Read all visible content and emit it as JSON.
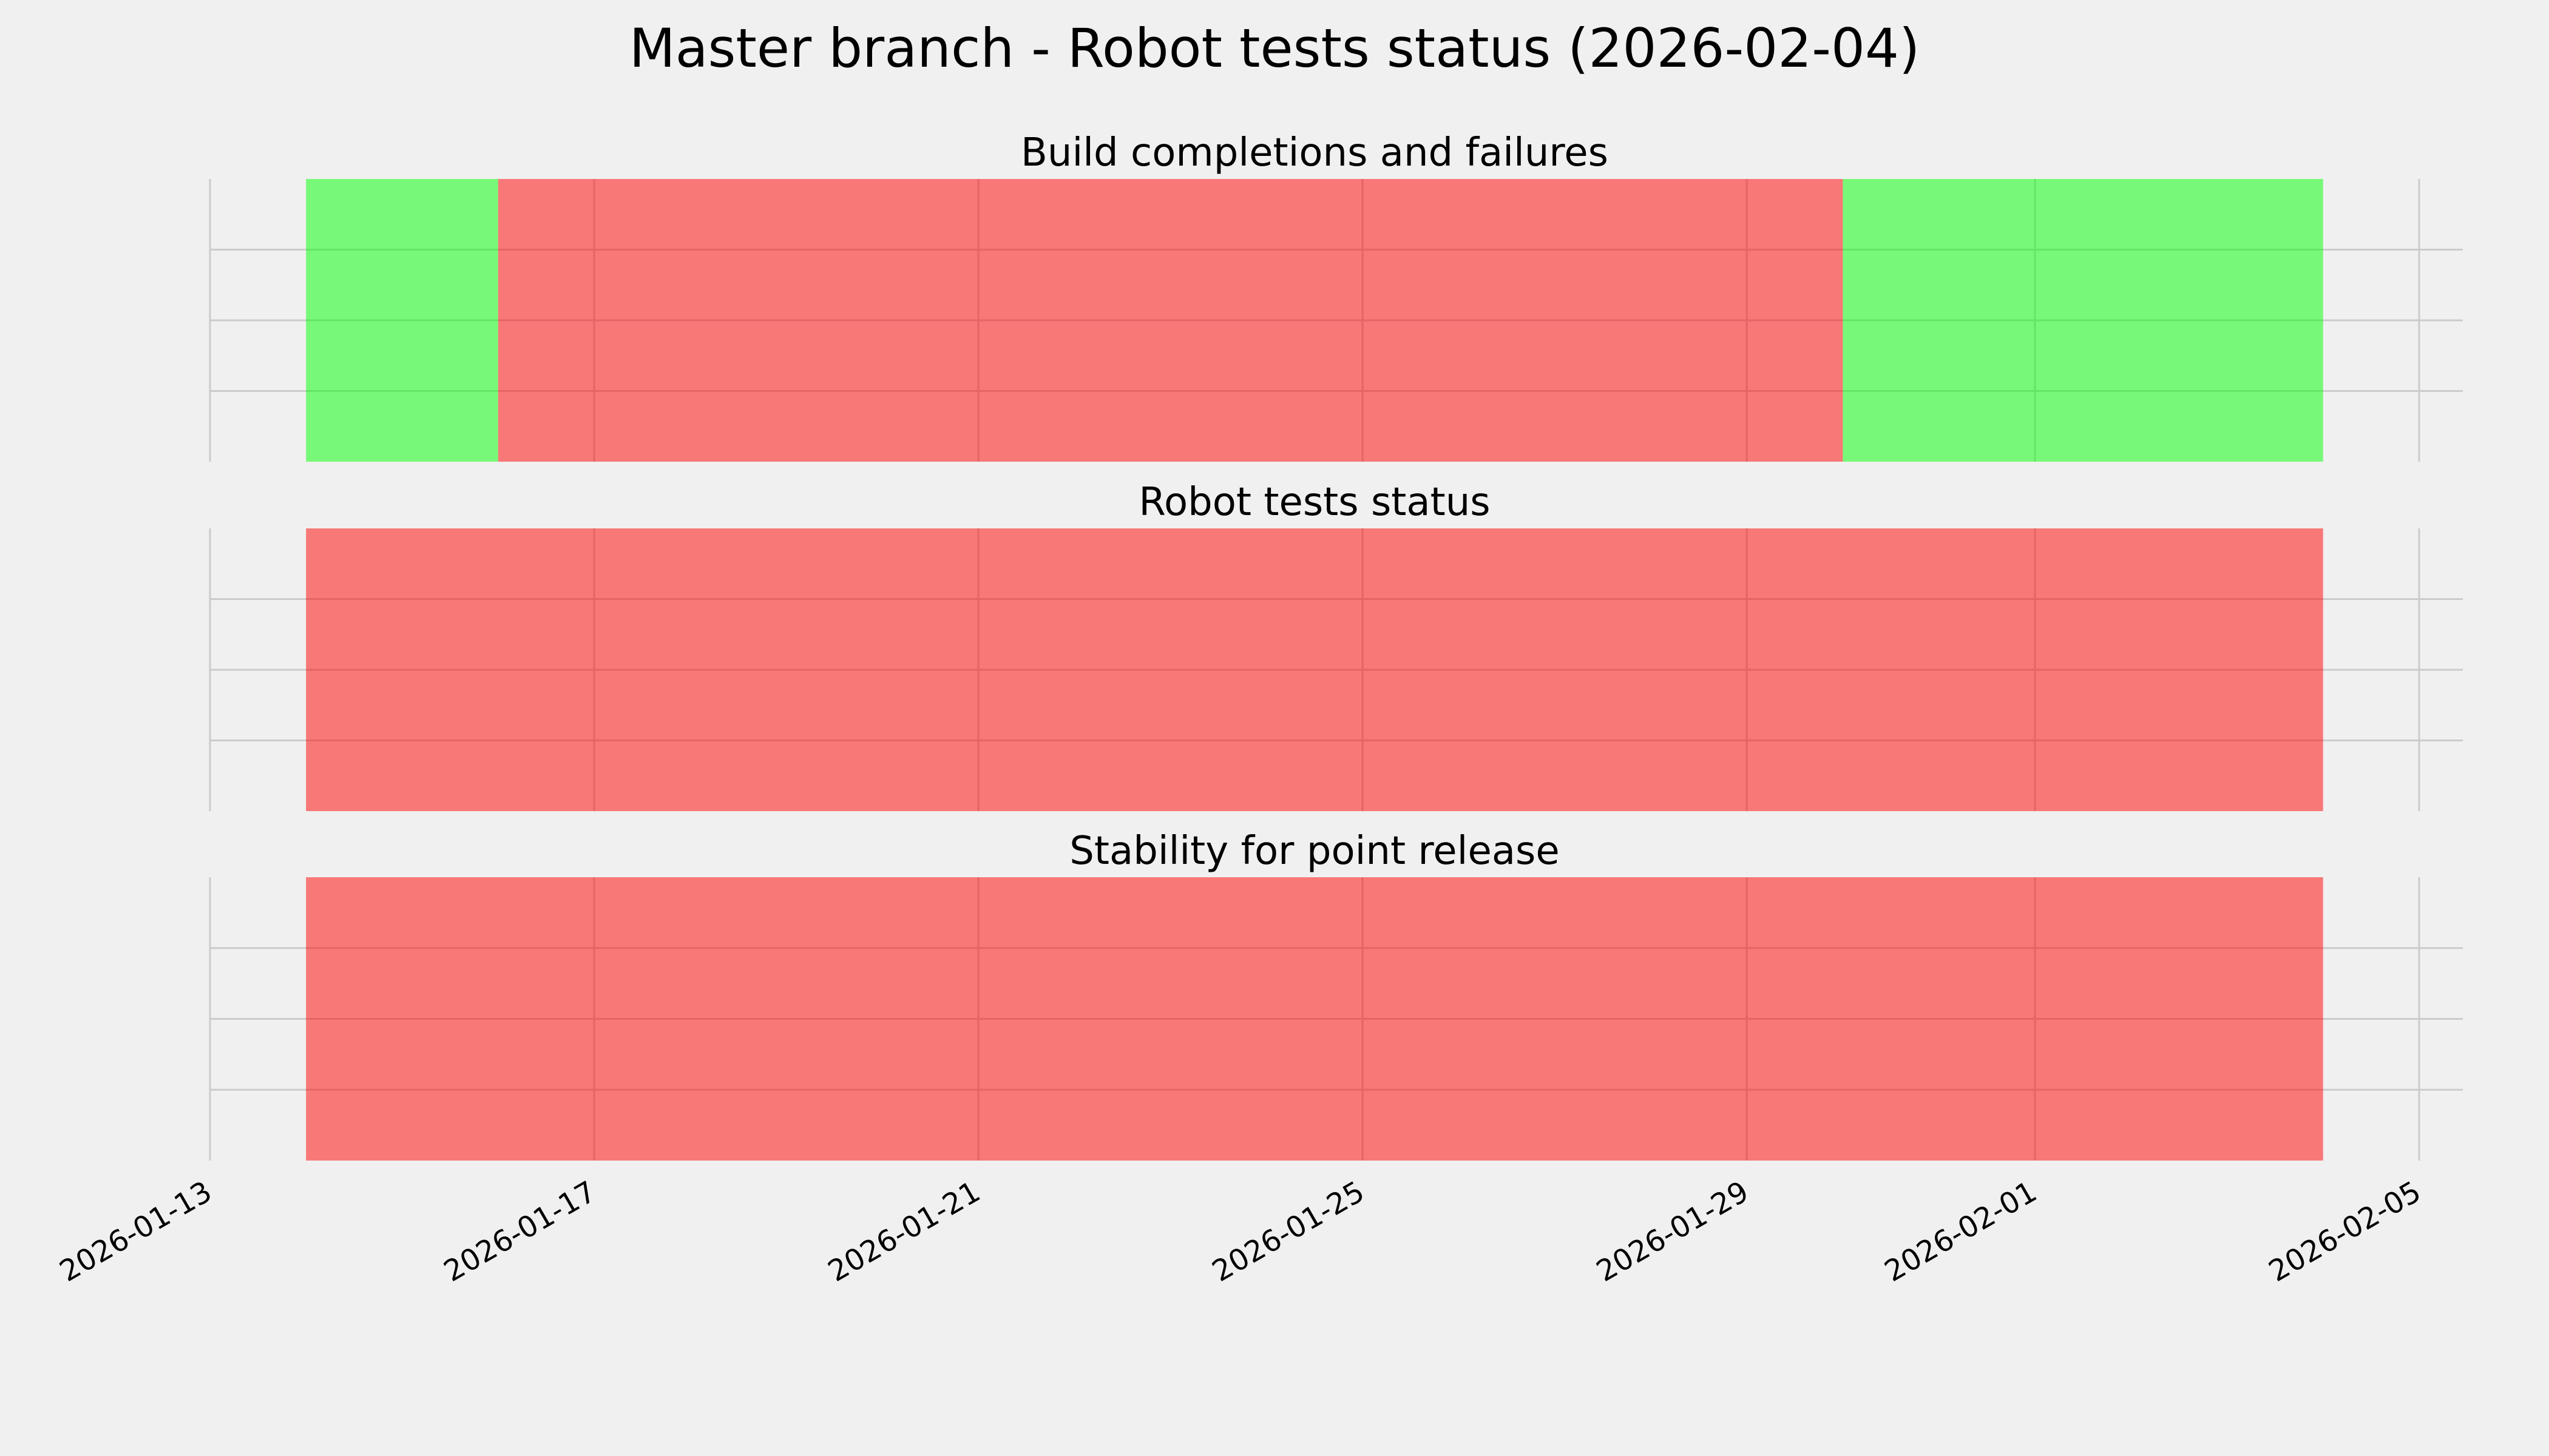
{
  "title": "Master branch - Robot tests status (2026-02-04)",
  "chart_data": [
    {
      "type": "timeline",
      "title": "Build completions and failures",
      "spans": [
        {
          "start": "2026-01-14",
          "end": "2026-01-16",
          "color": "#00ff00"
        },
        {
          "start": "2026-01-16",
          "end": "2026-01-30",
          "color": "#ff0000"
        },
        {
          "start": "2026-01-30",
          "end": "2026-02-04",
          "color": "#00ff00"
        }
      ],
      "alpha": 0.5,
      "xlim": [
        "2026-01-13",
        "2026-02-05"
      ],
      "xticks": [
        "2026-01-13",
        "2026-01-17",
        "2026-01-21",
        "2026-01-25",
        "2026-01-29",
        "2026-02-01",
        "2026-02-05"
      ],
      "ylim": [
        0,
        1
      ],
      "yticks": [
        0.25,
        0.5,
        0.75
      ],
      "grid": true
    },
    {
      "type": "timeline",
      "title": "Robot tests status",
      "spans": [
        {
          "start": "2026-01-14",
          "end": "2026-02-04",
          "color": "#ff0000"
        }
      ],
      "alpha": 0.5,
      "xlim": [
        "2026-01-13",
        "2026-02-05"
      ],
      "xticks": [
        "2026-01-13",
        "2026-01-17",
        "2026-01-21",
        "2026-01-25",
        "2026-01-29",
        "2026-02-01",
        "2026-02-05"
      ],
      "ylim": [
        0,
        1
      ],
      "yticks": [
        0.25,
        0.5,
        0.75
      ],
      "grid": true
    },
    {
      "type": "timeline",
      "title": "Stability for point release",
      "spans": [
        {
          "start": "2026-01-14",
          "end": "2026-02-04",
          "color": "#ff0000"
        }
      ],
      "alpha": 0.5,
      "xlim": [
        "2026-01-13",
        "2026-02-05"
      ],
      "xticks": [
        "2026-01-13",
        "2026-01-17",
        "2026-01-21",
        "2026-01-25",
        "2026-01-29",
        "2026-02-01",
        "2026-02-05"
      ],
      "ylim": [
        0,
        1
      ],
      "yticks": [
        0.25,
        0.5,
        0.75
      ],
      "grid": true,
      "show_xtick_labels": true
    }
  ]
}
